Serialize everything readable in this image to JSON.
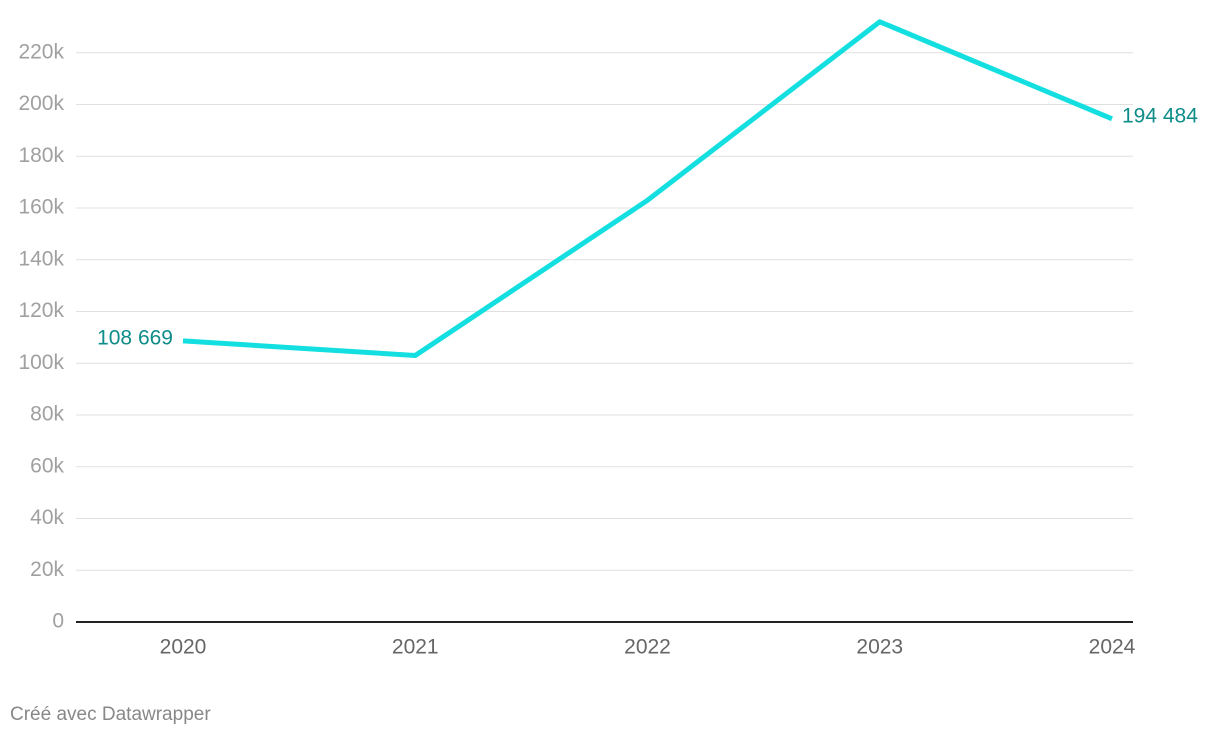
{
  "chart_data": {
    "type": "line",
    "categories": [
      "2020",
      "2021",
      "2022",
      "2023",
      "2024"
    ],
    "values": [
      108669,
      103000,
      163000,
      232000,
      194484
    ],
    "value_labels": [
      "108 669",
      null,
      null,
      null,
      "194 484"
    ],
    "color": "#14dfe0",
    "label_color": "#0d8c89",
    "ylim": [
      0,
      235000
    ],
    "yticks": [
      0,
      {
        "value": 20000,
        "label": "20k"
      },
      {
        "value": 40000,
        "label": "40k"
      },
      {
        "value": 60000,
        "label": "60k"
      },
      {
        "value": 80000,
        "label": "80k"
      },
      {
        "value": 100000,
        "label": "100k"
      },
      {
        "value": 120000,
        "label": "120k"
      },
      {
        "value": 140000,
        "label": "140k"
      },
      {
        "value": 160000,
        "label": "160k"
      },
      {
        "value": 180000,
        "label": "180k"
      },
      {
        "value": 200000,
        "label": "200k"
      },
      {
        "value": 220000,
        "label": "220k"
      }
    ],
    "grid": true,
    "footer": "Créé avec Datawrapper"
  }
}
